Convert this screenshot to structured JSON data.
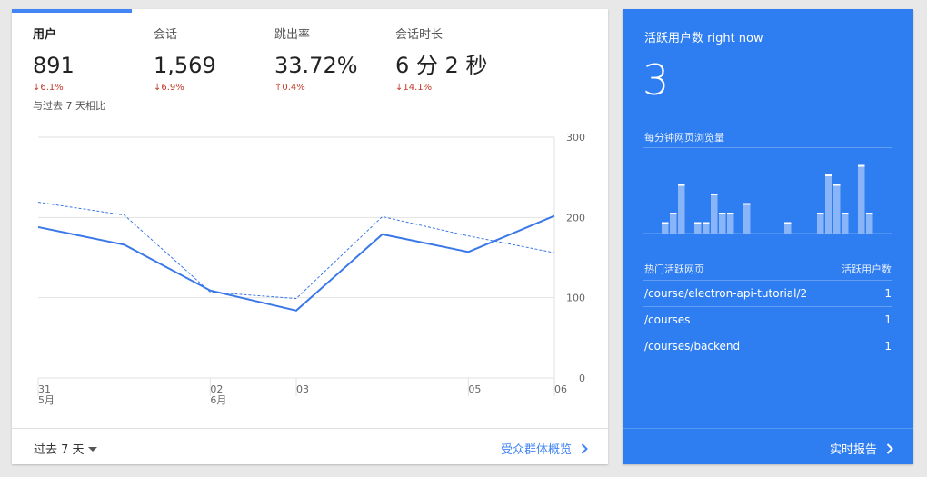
{
  "overview": {
    "metrics": [
      {
        "label": "用户",
        "value": "891",
        "change": "↓6.1%"
      },
      {
        "label": "会话",
        "value": "1,569",
        "change": "↓6.9%"
      },
      {
        "label": "跳出率",
        "value": "33.72%",
        "change": "↑0.4%"
      },
      {
        "label": "会话时长",
        "value": "6 分 2 秒",
        "change": "↓14.1%"
      }
    ],
    "compare_text": "与过去 7 天相比",
    "footer": {
      "range_label": "过去 7 天",
      "link_label": "受众群体概览"
    }
  },
  "colors": {
    "accent": "#4285f4",
    "negative": "#c53929",
    "realtime_bg": "#2f7ef1"
  },
  "chart_data": {
    "type": "line",
    "x_ticks": [
      {
        "day": "31",
        "month": "5月"
      },
      {
        "day": "",
        "month": ""
      },
      {
        "day": "02",
        "month": "6月"
      },
      {
        "day": "03",
        "month": ""
      },
      {
        "day": "",
        "month": ""
      },
      {
        "day": "05",
        "month": ""
      },
      {
        "day": "06",
        "month": ""
      }
    ],
    "series": [
      {
        "values": [
          188,
          166,
          109,
          84,
          179,
          157,
          202
        ]
      },
      {
        "values": [
          219,
          203,
          107,
          99,
          201,
          177,
          156
        ]
      }
    ],
    "y_ticks": [
      "0",
      "100",
      "200",
      "300"
    ],
    "ylim": [
      0,
      300
    ],
    "grid": true,
    "y_axis_side": "right"
  },
  "realtime": {
    "title": "活跃用户数 right now",
    "count": "3",
    "pageviews_label": "每分钟网页浏览量",
    "pageviews_per_minute": [
      0,
      1,
      2,
      5,
      0,
      1,
      1,
      4,
      2,
      2,
      0,
      3,
      0,
      0,
      0,
      0,
      1,
      0,
      0,
      0,
      2,
      6,
      5,
      2,
      0,
      7,
      2
    ],
    "table_header": {
      "page": "热门活跃网页",
      "users": "活跃用户数"
    },
    "rows": [
      {
        "page": "/course/electron-api-tutorial/2",
        "users": "1"
      },
      {
        "page": "/courses",
        "users": "1"
      },
      {
        "page": "/courses/backend",
        "users": "1"
      }
    ],
    "footer_link": "实时报告"
  }
}
